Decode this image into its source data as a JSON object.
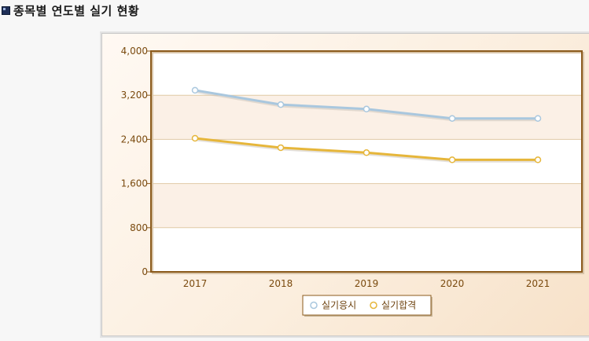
{
  "page": {
    "title": "종목별 연도별 실기 현황"
  },
  "chart_data": {
    "type": "line",
    "categories": [
      "2017",
      "2018",
      "2019",
      "2020",
      "2021"
    ],
    "series": [
      {
        "name": "실기응시",
        "values": [
          3290,
          3030,
          2950,
          2780,
          2780
        ],
        "color": "#a9c7de"
      },
      {
        "name": "실기합격",
        "values": [
          2420,
          2250,
          2160,
          2030,
          2030
        ],
        "color": "#e6b63a"
      }
    ],
    "ylim": [
      0,
      4000
    ],
    "yticks": [
      0,
      800,
      1600,
      2400,
      3200,
      4000
    ],
    "ytick_labels": [
      "0",
      "800",
      "1,600",
      "2,400",
      "3,200",
      "4,000"
    ],
    "grid": true,
    "legend": "bottom-center",
    "colors": {
      "plot_border": "#8b5a1b",
      "band_alt": "#fbf0e6",
      "grid": "#e0c9a6"
    }
  }
}
